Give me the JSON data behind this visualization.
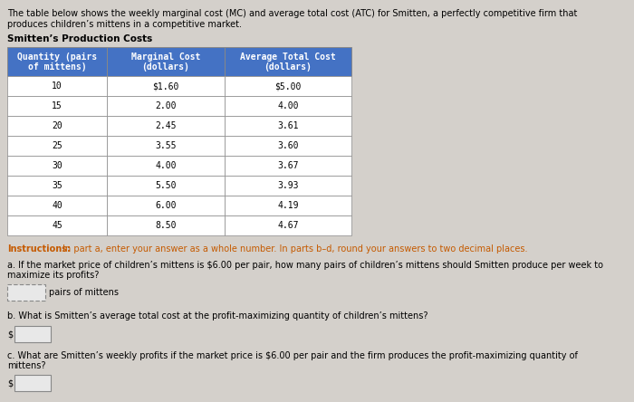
{
  "intro_text_line1": "The table below shows the weekly marginal cost (MC) and average total cost (ATC) for Smitten, a perfectly competitive firm that",
  "intro_text_line2": "produces children’s mittens in a competitive market.",
  "table_title": "Smitten’s Production Costs",
  "col_headers": [
    "Quantity (pairs\nof mittens)",
    "Marginal Cost\n(dollars)",
    "Average Total Cost\n(dollars)"
  ],
  "rows": [
    [
      "10",
      "$1.60",
      "$5.00"
    ],
    [
      "15",
      "2.00",
      "4.00"
    ],
    [
      "20",
      "2.45",
      "3.61"
    ],
    [
      "25",
      "3.55",
      "3.60"
    ],
    [
      "30",
      "4.00",
      "3.67"
    ],
    [
      "35",
      "5.50",
      "3.93"
    ],
    [
      "40",
      "6.00",
      "4.19"
    ],
    [
      "45",
      "8.50",
      "4.67"
    ]
  ],
  "instructions_bold": "Instructions:",
  "instructions_rest": " In part a, enter your answer as a whole number. In parts b–d, round your answers to two decimal places.",
  "q_a": "a. If the market price of children’s mittens is $6.00 per pair, how many pairs of children’s mittens should Smitten produce per week to\nmaximize its profits?",
  "q_a_unit": "pairs of mittens",
  "q_b": "b. What is Smitten’s average total cost at the profit-maximizing quantity of children’s mittens?",
  "q_c": "c. What are Smitten’s weekly profits if the market price is $6.00 per pair and the firm produces the profit-maximizing quantity of\nmittens?",
  "bg_color": "#d4d0cb",
  "header_bg": "#4472c4",
  "header_text_color": "#ffffff",
  "row_bg": "#ffffff",
  "border_color": "#888888",
  "instructions_color": "#c55a00",
  "text_color": "#000000",
  "font": "monospace"
}
